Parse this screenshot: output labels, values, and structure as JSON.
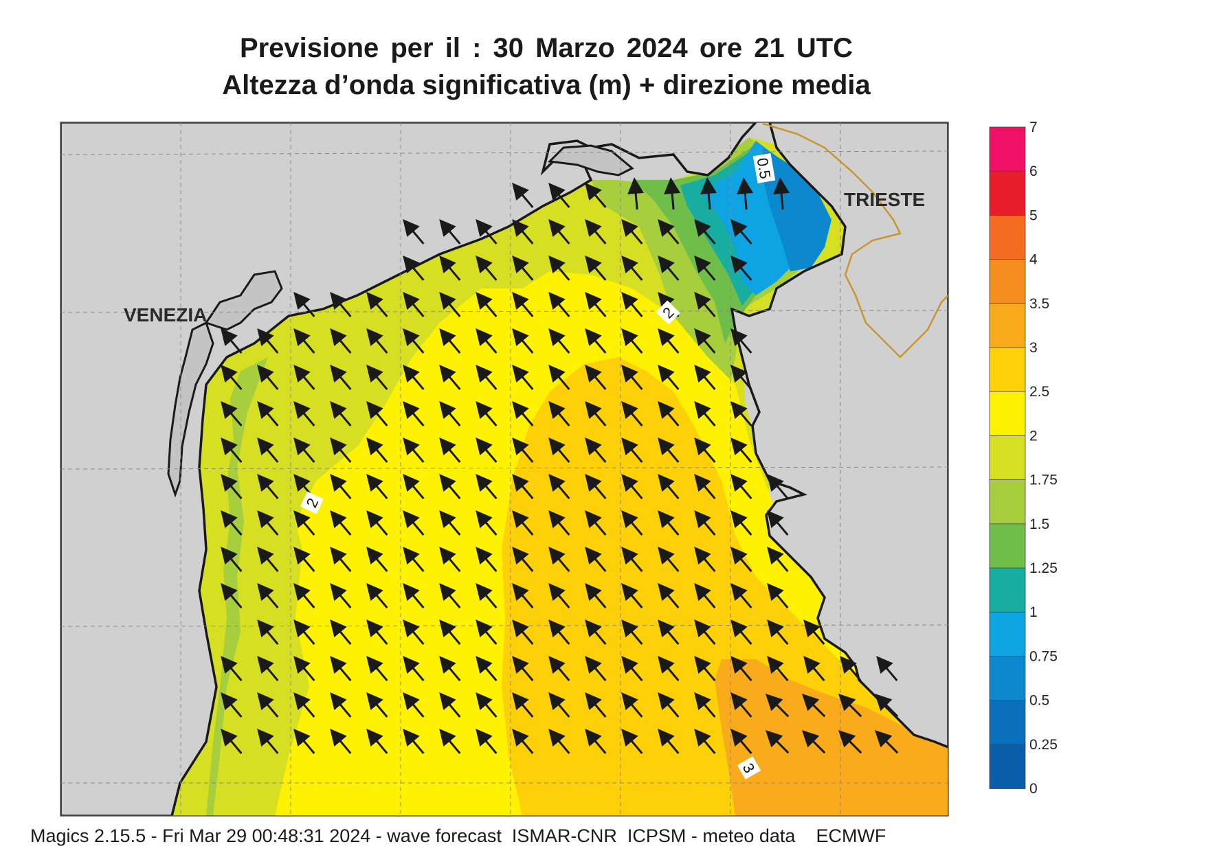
{
  "title": {
    "line1": "Previsione per il  :  30   Marzo   2024   ore 21 UTC",
    "line2": "Altezza d’onda significativa (m) + direzione media"
  },
  "map": {
    "cities": [
      "VENEZIA",
      "TRIESTE"
    ],
    "contour_labels": [
      "0.5",
      "2",
      "2",
      "3"
    ],
    "arrow_direction": "north-west",
    "land_color": "#d0d0d0",
    "coastline_color": "#1a1a1a",
    "border_color": "#c8962e"
  },
  "colorbar": {
    "levels": [
      "7",
      "6",
      "5",
      "4",
      "3.5",
      "3",
      "2.5",
      "2",
      "1.75",
      "1.5",
      "1.25",
      "1",
      "0.75",
      "0.5",
      "0.25",
      "0"
    ],
    "colors": [
      "#ee1166",
      "#e81d2a",
      "#f36c22",
      "#f68d1f",
      "#f9ab1c",
      "#fed008",
      "#fff200",
      "#d7df23",
      "#a7cf3d",
      "#6fbe4a",
      "#17ada1",
      "#0ea3e2",
      "#0b88ce",
      "#0a6fbb",
      "#0a5da8"
    ]
  },
  "footer": "Magics 2.15.5 - Fri Mar 29 00:48:31 2024 - wave forecast  ISMAR-CNR  ICPSM - meteo data    ECMWF"
}
